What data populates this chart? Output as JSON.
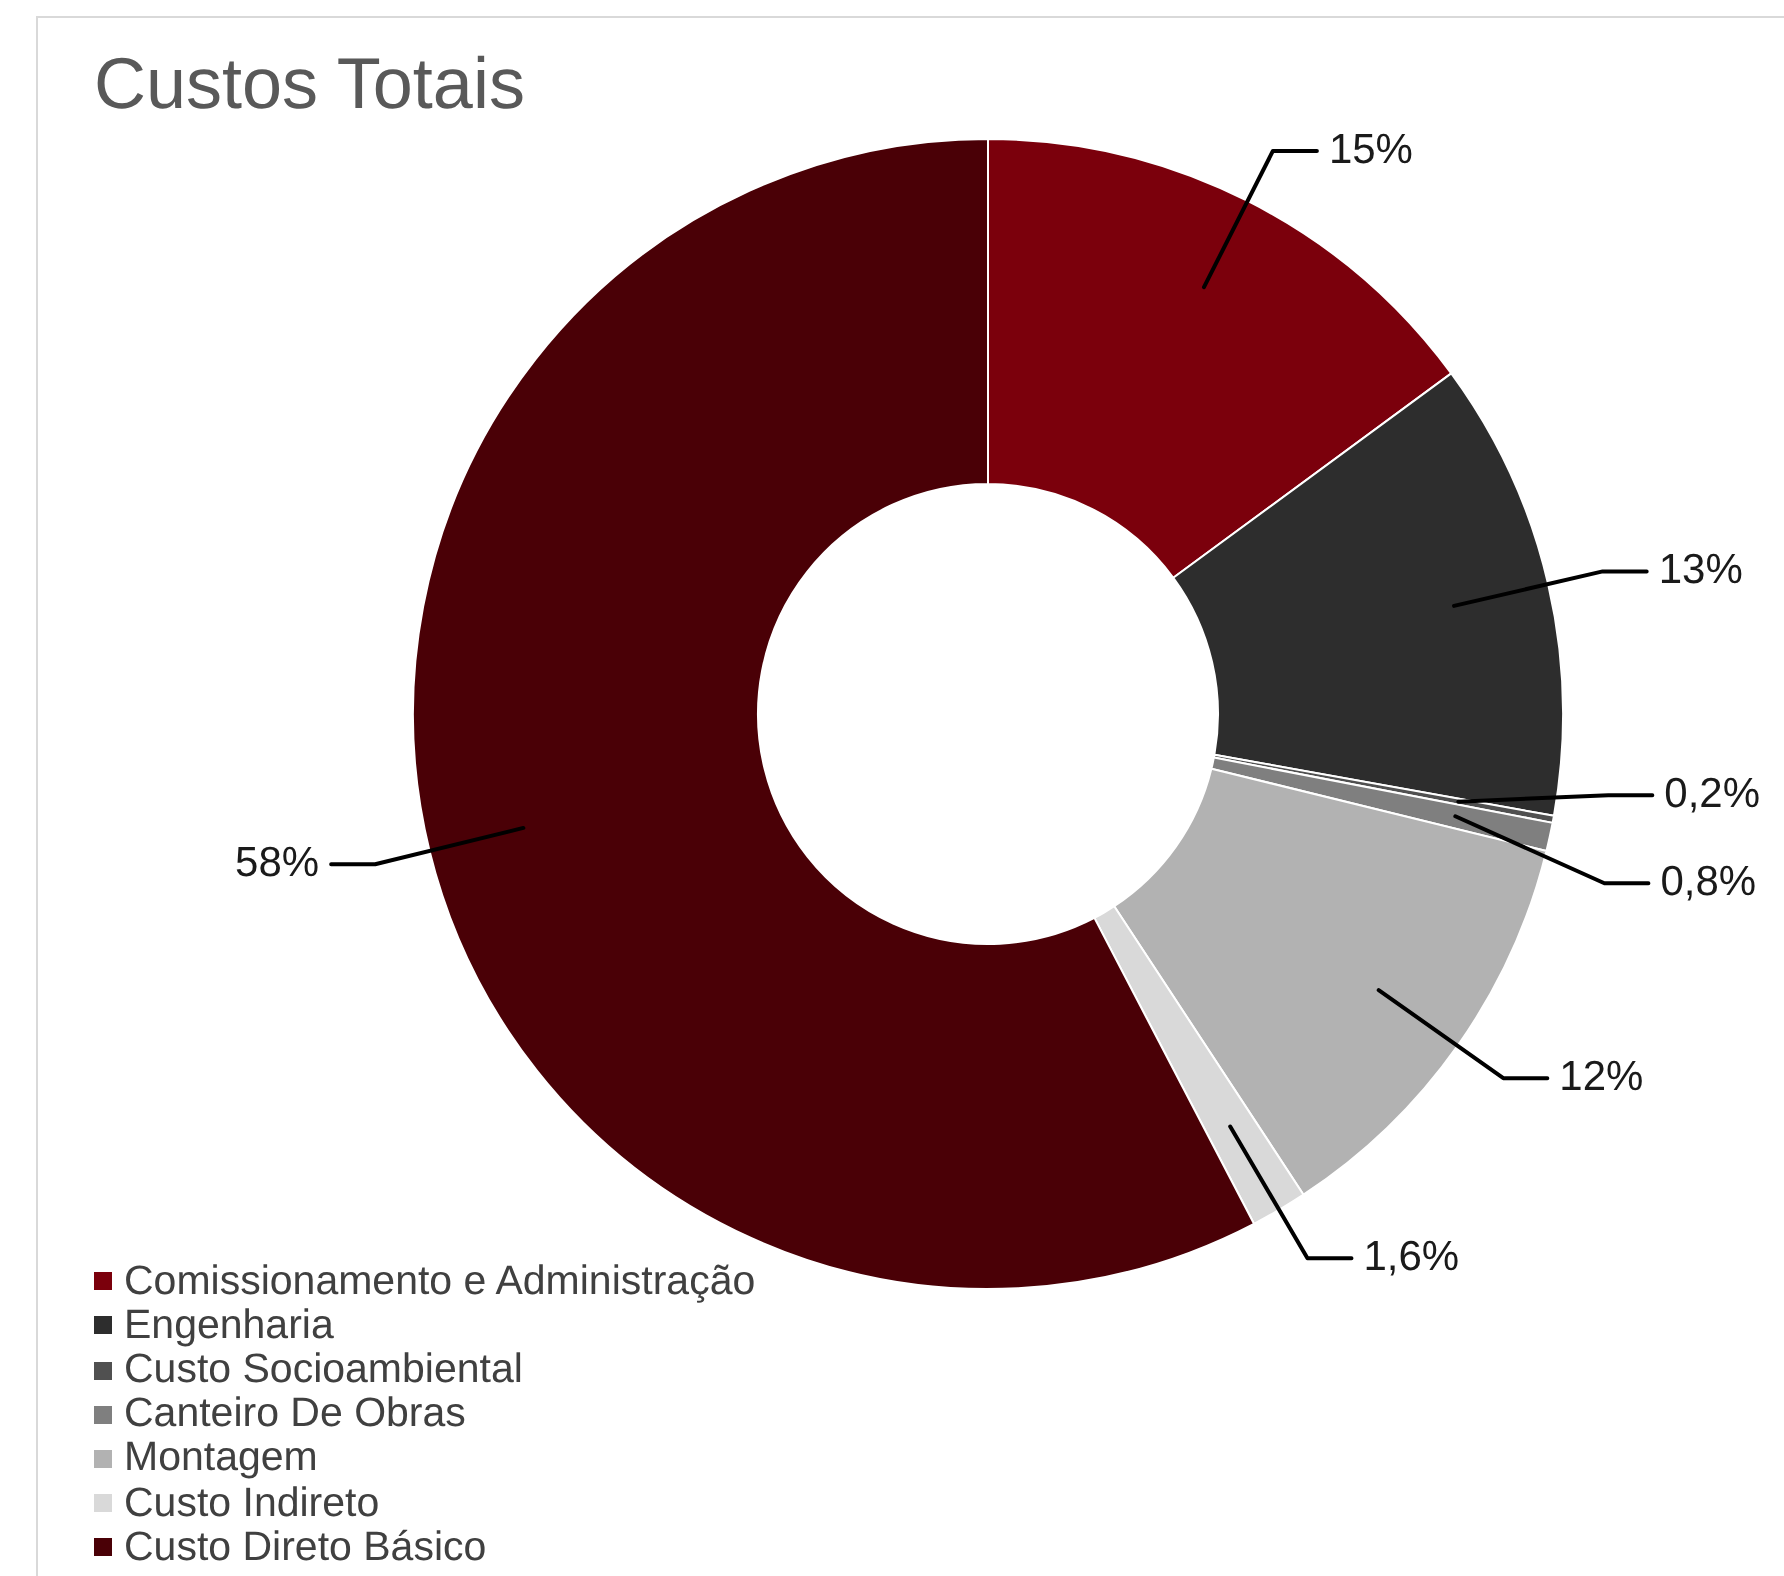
{
  "chart_data": {
    "type": "donut",
    "title": "Custos Totais",
    "categories": [
      "Comissionamento e Administração",
      "Engenharia",
      "Custo Socioambiental",
      "Canteiro De Obras",
      "Montagem",
      "Custo Indireto",
      "Custo Direto Básico"
    ],
    "values": [
      15,
      13,
      0.2,
      0.8,
      12,
      1.6,
      58
    ],
    "colors": [
      "#7b000c",
      "#2d2d2d",
      "#505050",
      "#7f7f7f",
      "#b2b2b2",
      "#d9d9d9",
      "#4a0006"
    ],
    "value_labels": [
      "15%",
      "13%",
      "0,2%",
      "0,8%",
      "12%",
      "1,6%",
      "58%"
    ],
    "legend": "bottom left"
  }
}
